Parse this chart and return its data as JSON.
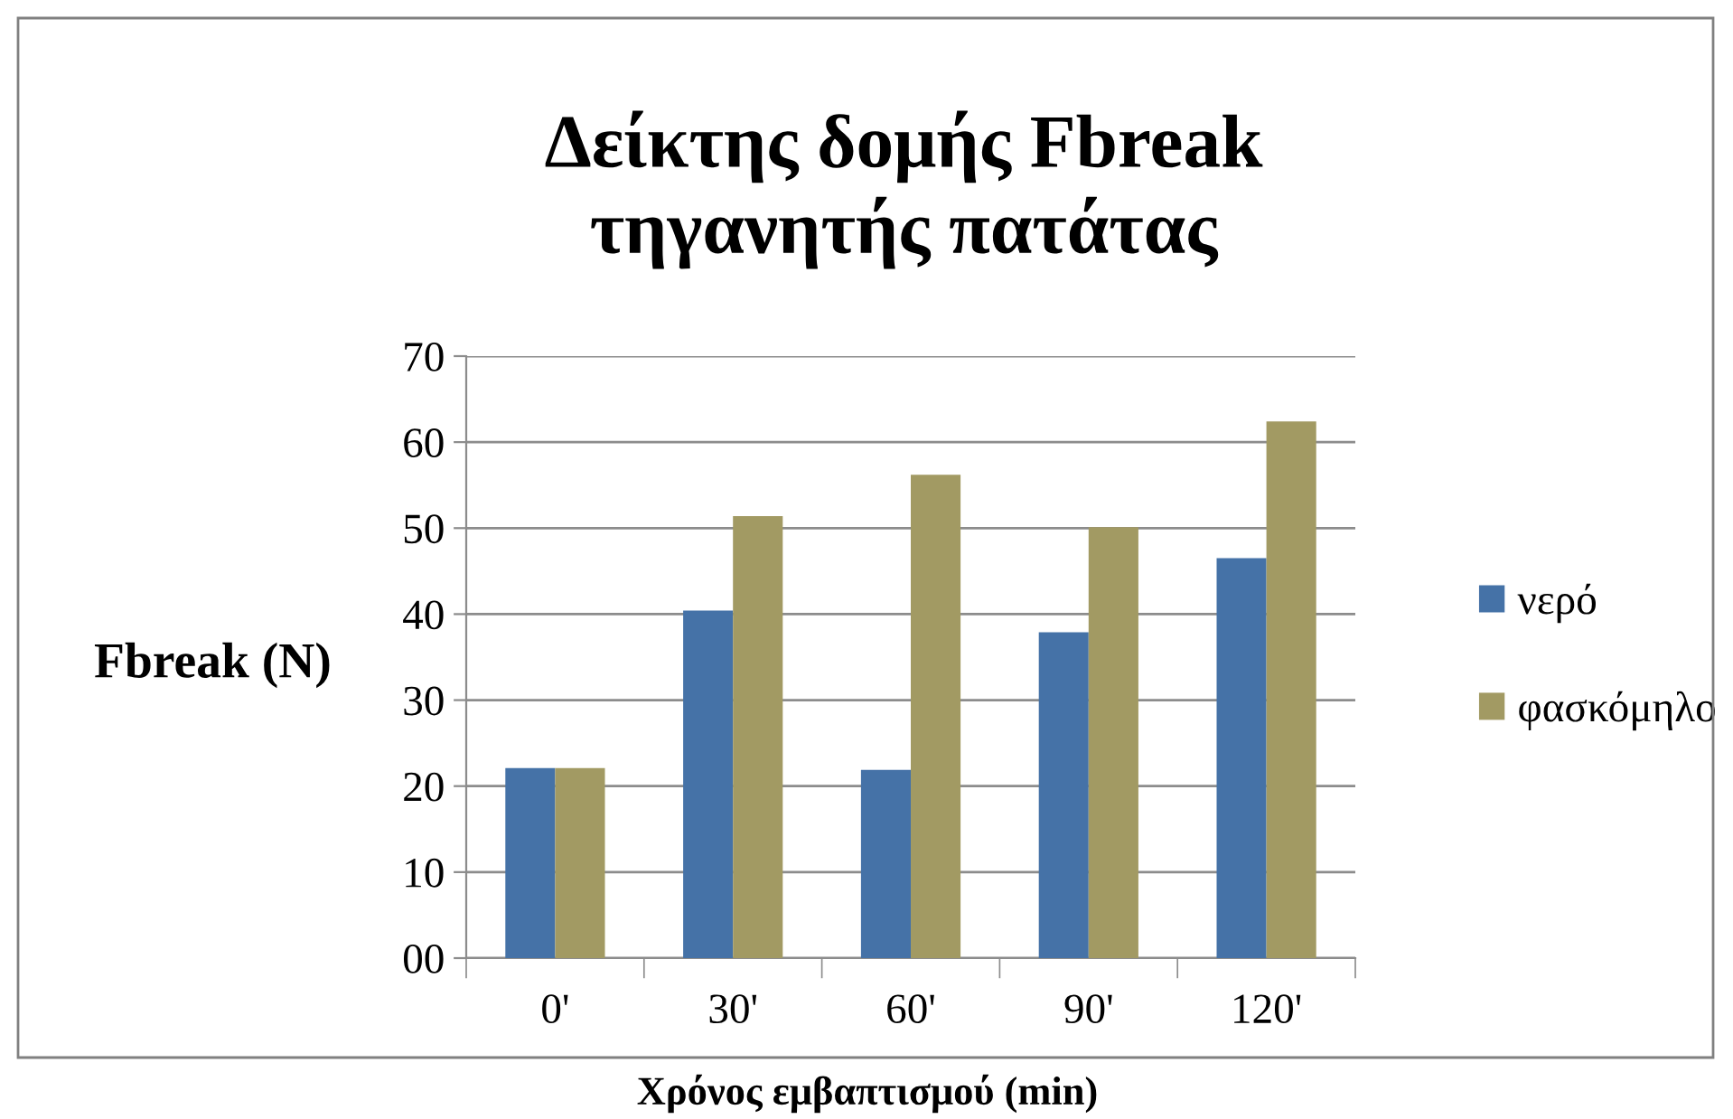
{
  "chart_data": {
    "type": "bar",
    "title": "Δείκτης δομής Fbreak\nτηγανητής πατάτας",
    "ylabel": "Fbreak (N)",
    "xlabel": "Χρόνος εμβαπτισμού (min)",
    "categories": [
      "0'",
      "30'",
      "60'",
      "90'",
      "120'"
    ],
    "series": [
      {
        "name": "νερό",
        "color": "#4572a7",
        "values": [
          22.1,
          40.4,
          21.9,
          37.9,
          46.5
        ]
      },
      {
        "name": "φασκόμηλο",
        "color": "#a29a63",
        "values": [
          22.1,
          51.4,
          56.2,
          50.1,
          62.4
        ]
      }
    ],
    "ylim": [
      0,
      70
    ],
    "yticks": [
      {
        "value": 0,
        "label": "00"
      },
      10,
      20,
      30,
      40,
      50,
      60,
      70
    ],
    "grid": "y",
    "legend": "right"
  }
}
